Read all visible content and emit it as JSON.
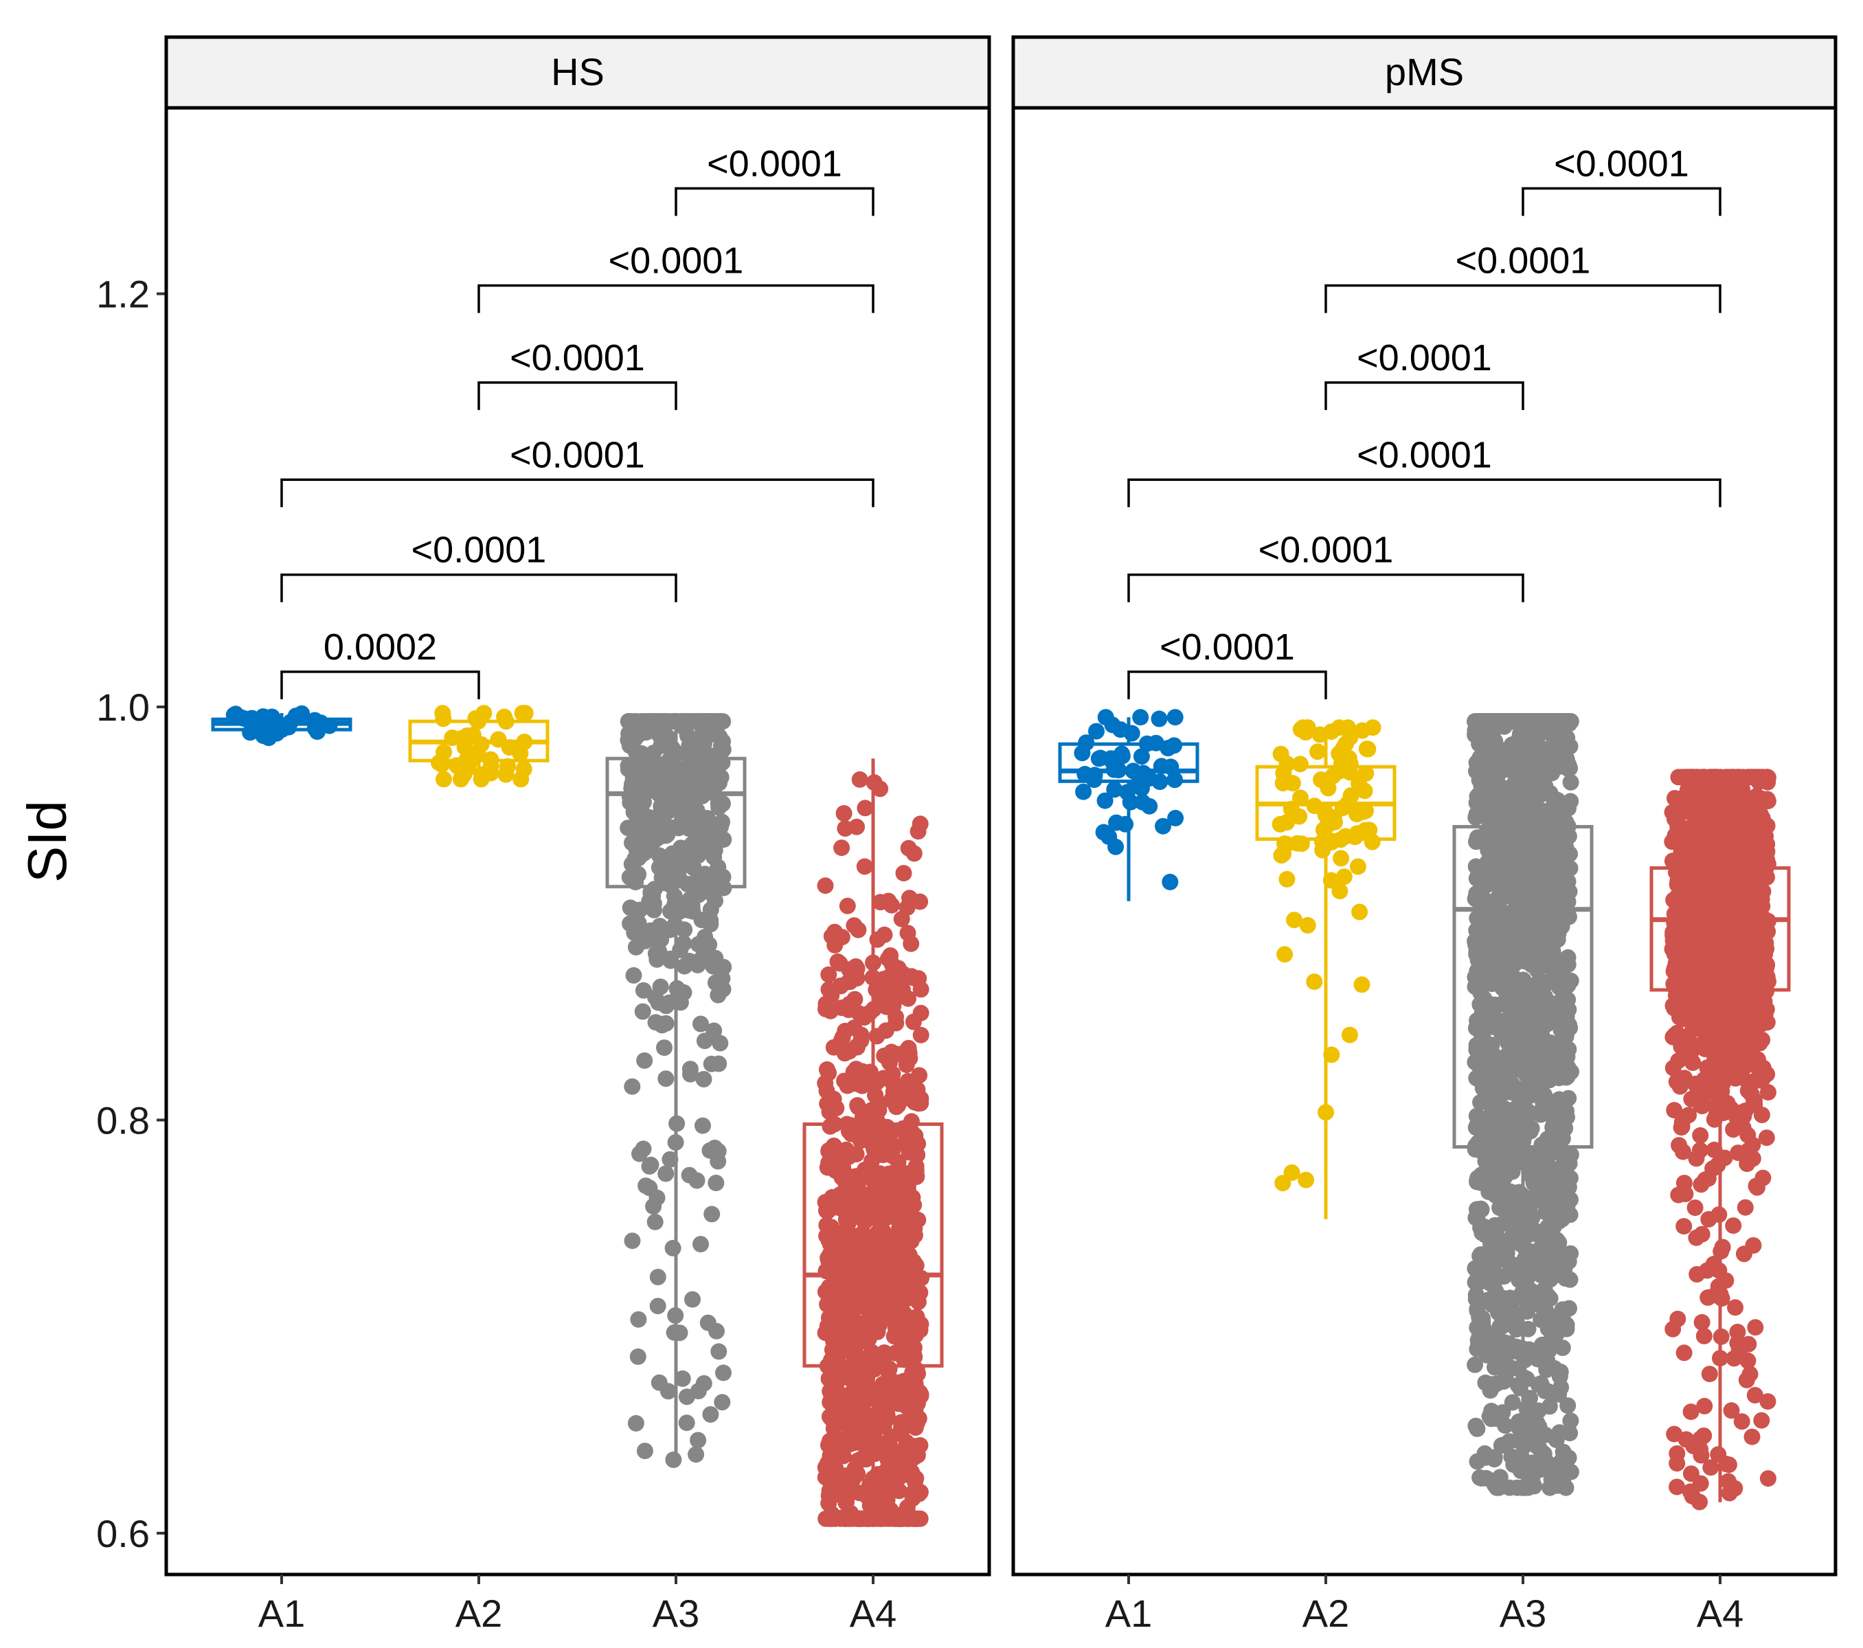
{
  "chart_data": {
    "type": "box",
    "ylabel": "SId",
    "ylim": [
      0.58,
      1.29
    ],
    "yticks": [
      {
        "value": 0.6,
        "label": "0.6"
      },
      {
        "value": 0.8,
        "label": "0.8"
      },
      {
        "value": 1.0,
        "label": "1.0"
      },
      {
        "value": 1.2,
        "label": "1.2"
      }
    ],
    "categories": [
      "A1",
      "A2",
      "A3",
      "A4"
    ],
    "colors": {
      "A1": "#0073C2",
      "A2": "#EFC000",
      "A3": "#868686",
      "A4": "#CD534C"
    },
    "panels": [
      {
        "name": "HS",
        "boxes": [
          {
            "category": "A1",
            "min": 0.985,
            "q1": 0.989,
            "median": 0.992,
            "q3": 0.994,
            "max": 0.997
          },
          {
            "category": "A2",
            "min": 0.965,
            "q1": 0.974,
            "median": 0.983,
            "q3": 0.993,
            "max": 0.997
          },
          {
            "category": "A3",
            "min": 0.635,
            "q1": 0.913,
            "median": 0.958,
            "q3": 0.975,
            "max": 0.993
          },
          {
            "category": "A4",
            "min": 0.607,
            "q1": 0.681,
            "median": 0.725,
            "q3": 0.798,
            "max": 0.975
          }
        ],
        "comparisons": [
          {
            "from": "A1",
            "to": "A2",
            "y": 1.017,
            "label": "0.0002"
          },
          {
            "from": "A1",
            "to": "A3",
            "y": 1.064,
            "label": "<0.0001"
          },
          {
            "from": "A1",
            "to": "A4",
            "y": 1.11,
            "label": "<0.0001"
          },
          {
            "from": "A2",
            "to": "A3",
            "y": 1.157,
            "label": "<0.0001"
          },
          {
            "from": "A2",
            "to": "A4",
            "y": 1.204,
            "label": "<0.0001"
          },
          {
            "from": "A3",
            "to": "A4",
            "y": 1.251,
            "label": "<0.0001"
          }
        ]
      },
      {
        "name": "pMS",
        "boxes": [
          {
            "category": "A1",
            "min": 0.906,
            "q1": 0.964,
            "median": 0.969,
            "q3": 0.982,
            "max": 0.995
          },
          {
            "category": "A2",
            "min": 0.752,
            "q1": 0.936,
            "median": 0.953,
            "q3": 0.971,
            "max": 0.99
          },
          {
            "category": "A3",
            "min": 0.622,
            "q1": 0.787,
            "median": 0.902,
            "q3": 0.942,
            "max": 0.993
          },
          {
            "category": "A4",
            "min": 0.615,
            "q1": 0.863,
            "median": 0.897,
            "q3": 0.922,
            "max": 0.966
          }
        ],
        "comparisons": [
          {
            "from": "A1",
            "to": "A2",
            "y": 1.017,
            "label": "<0.0001"
          },
          {
            "from": "A1",
            "to": "A3",
            "y": 1.064,
            "label": "<0.0001"
          },
          {
            "from": "A1",
            "to": "A4",
            "y": 1.11,
            "label": "<0.0001"
          },
          {
            "from": "A2",
            "to": "A3",
            "y": 1.157,
            "label": "<0.0001"
          },
          {
            "from": "A2",
            "to": "A4",
            "y": 1.204,
            "label": "<0.0001"
          },
          {
            "from": "A3",
            "to": "A4",
            "y": 1.251,
            "label": "<0.0001"
          }
        ]
      }
    ]
  }
}
